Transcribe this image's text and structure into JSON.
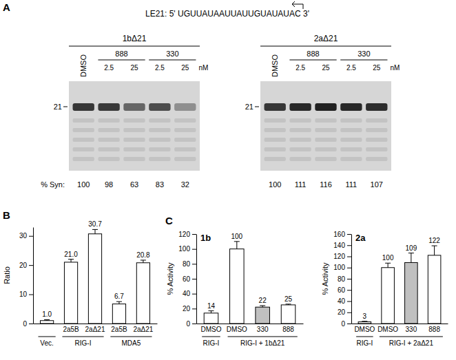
{
  "chart_data": [
    {
      "type": "gel",
      "panel": "A",
      "subtitle": "LE21: 5' UGUUAUAAUUAUUGUAUAUAC 3'",
      "unit": "nM",
      "band_size": 21,
      "values_label": "% Syn:",
      "gels": [
        {
          "name": "1bΔ21",
          "lanes": [
            {
              "treatment": "DMSO",
              "value": 100
            },
            {
              "treatment": "888",
              "dose": 2.5,
              "value": 98
            },
            {
              "treatment": "888",
              "dose": 25,
              "value": 63
            },
            {
              "treatment": "330",
              "dose": 2.5,
              "value": 83
            },
            {
              "treatment": "330",
              "dose": 25,
              "value": 32
            }
          ]
        },
        {
          "name": "2aΔ21",
          "lanes": [
            {
              "treatment": "DMSO",
              "value": 100
            },
            {
              "treatment": "888",
              "dose": 2.5,
              "value": 111
            },
            {
              "treatment": "888",
              "dose": 25,
              "value": 116
            },
            {
              "treatment": "330",
              "dose": 2.5,
              "value": 111
            },
            {
              "treatment": "330",
              "dose": 25,
              "value": 107
            }
          ]
        }
      ]
    },
    {
      "type": "bar",
      "panel": "B",
      "ylabel": "Ratio",
      "categories": [
        null,
        "2a5B",
        "2aΔ21",
        "2a5B",
        "2aΔ21"
      ],
      "groups": [
        "Vec.",
        "RIG-I",
        "RIG-I",
        "MDA5",
        "MDA5"
      ],
      "values": [
        1.0,
        21.0,
        30.7,
        6.7,
        20.8
      ],
      "value_labels": [
        "1.0",
        "21.0",
        "30.7",
        "6.7",
        "20.8"
      ],
      "errors": [
        0.3,
        1.0,
        1.5,
        0.8,
        0.9
      ],
      "colors": [
        "#ffffff",
        "#ffffff",
        "#ffffff",
        "#ffffff",
        "#ffffff"
      ],
      "ylim": [
        0,
        33
      ],
      "yticks": [
        0,
        10,
        20,
        30
      ],
      "data_labels": true
    },
    {
      "type": "bar",
      "panel": "C",
      "title": "1b",
      "ylabel": "% Activity",
      "categories": [
        "DMSO",
        "DMSO",
        "330",
        "888"
      ],
      "groups": [
        "RIG-I",
        "RIG-I + 1bΔ21",
        "RIG-I + 1bΔ21",
        "RIG-I + 1bΔ21"
      ],
      "values": [
        14,
        100,
        22,
        25
      ],
      "errors": [
        3,
        10,
        2,
        1
      ],
      "colors": [
        "#ffffff",
        "#ffffff",
        "#c0c0c0",
        "#ffffff"
      ],
      "ylim": [
        0,
        120
      ],
      "yticks": [
        0,
        20,
        40,
        60,
        80,
        100,
        120
      ],
      "data_labels": true
    },
    {
      "type": "bar",
      "title": "2a",
      "ylabel": "% Activity",
      "categories": [
        "DMSO",
        "DMSO",
        "330",
        "888"
      ],
      "groups": [
        "RIG-I",
        "RIG-I + 2aΔ21",
        "RIG-I + 2aΔ21",
        "RIG-I + 2aΔ21"
      ],
      "values": [
        3,
        100,
        109,
        122
      ],
      "errors": [
        1,
        8,
        17,
        17
      ],
      "colors": [
        "#ffffff",
        "#ffffff",
        "#c0c0c0",
        "#ffffff"
      ],
      "ylim": [
        0,
        160
      ],
      "yticks": [
        0,
        20,
        40,
        60,
        80,
        100,
        120,
        140,
        160
      ],
      "data_labels": true
    }
  ]
}
